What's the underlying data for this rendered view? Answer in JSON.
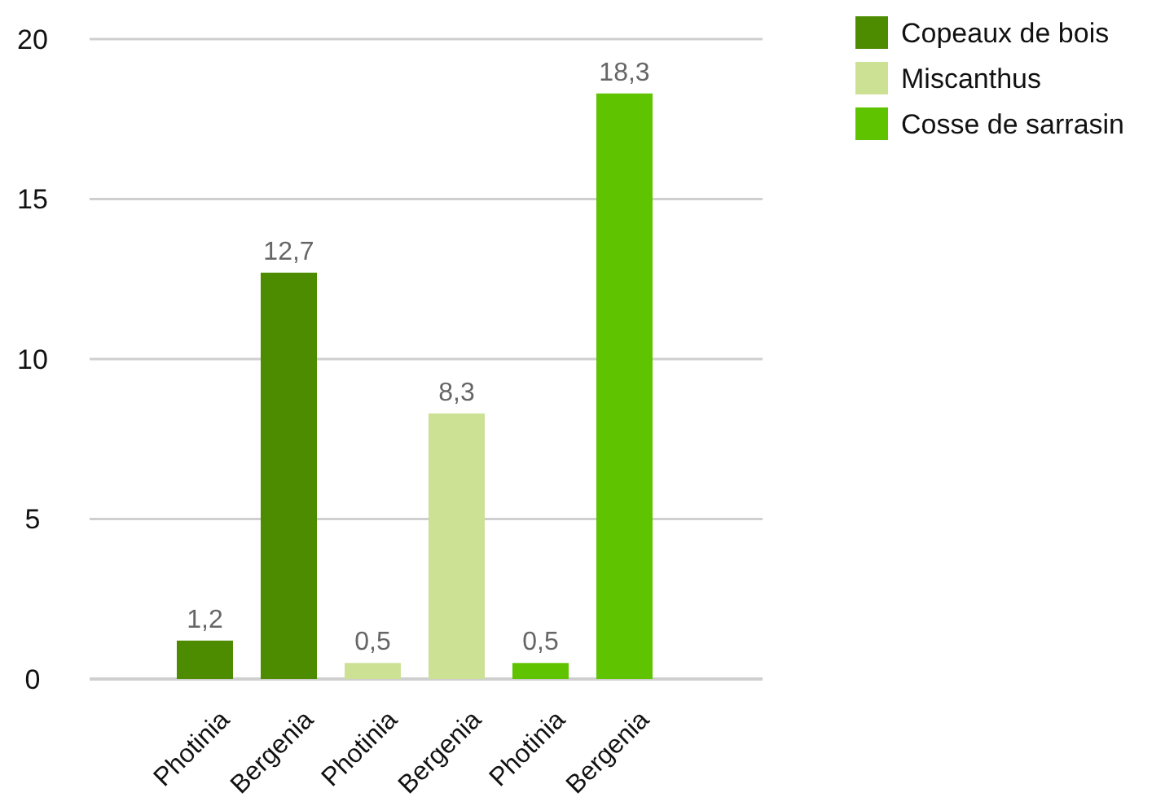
{
  "chart_data": {
    "type": "bar",
    "categories": [
      "Photinia",
      "Bergenia",
      "Photinia",
      "Bergenia",
      "Photinia",
      "Bergenia"
    ],
    "series": [
      {
        "name": "Copeaux de bois",
        "color": "#4d8c00",
        "values": [
          1.2,
          12.7,
          null,
          null,
          null,
          null
        ],
        "value_labels": [
          "1,2",
          "12,7",
          null,
          null,
          null,
          null
        ]
      },
      {
        "name": "Miscanthus",
        "color": "#cde195",
        "values": [
          null,
          null,
          0.5,
          8.3,
          null,
          null
        ],
        "value_labels": [
          null,
          null,
          "0,5",
          "8,3",
          null,
          null
        ]
      },
      {
        "name": "Cosse de sarrasin",
        "color": "#5fc300",
        "values": [
          null,
          null,
          null,
          null,
          0.5,
          18.3
        ],
        "value_labels": [
          null,
          null,
          null,
          null,
          "0,5",
          "18,3"
        ]
      }
    ],
    "ylim": [
      0,
      20
    ],
    "yticks": [
      0,
      5,
      10,
      15,
      20
    ],
    "grid": "y",
    "legend": "top right"
  }
}
